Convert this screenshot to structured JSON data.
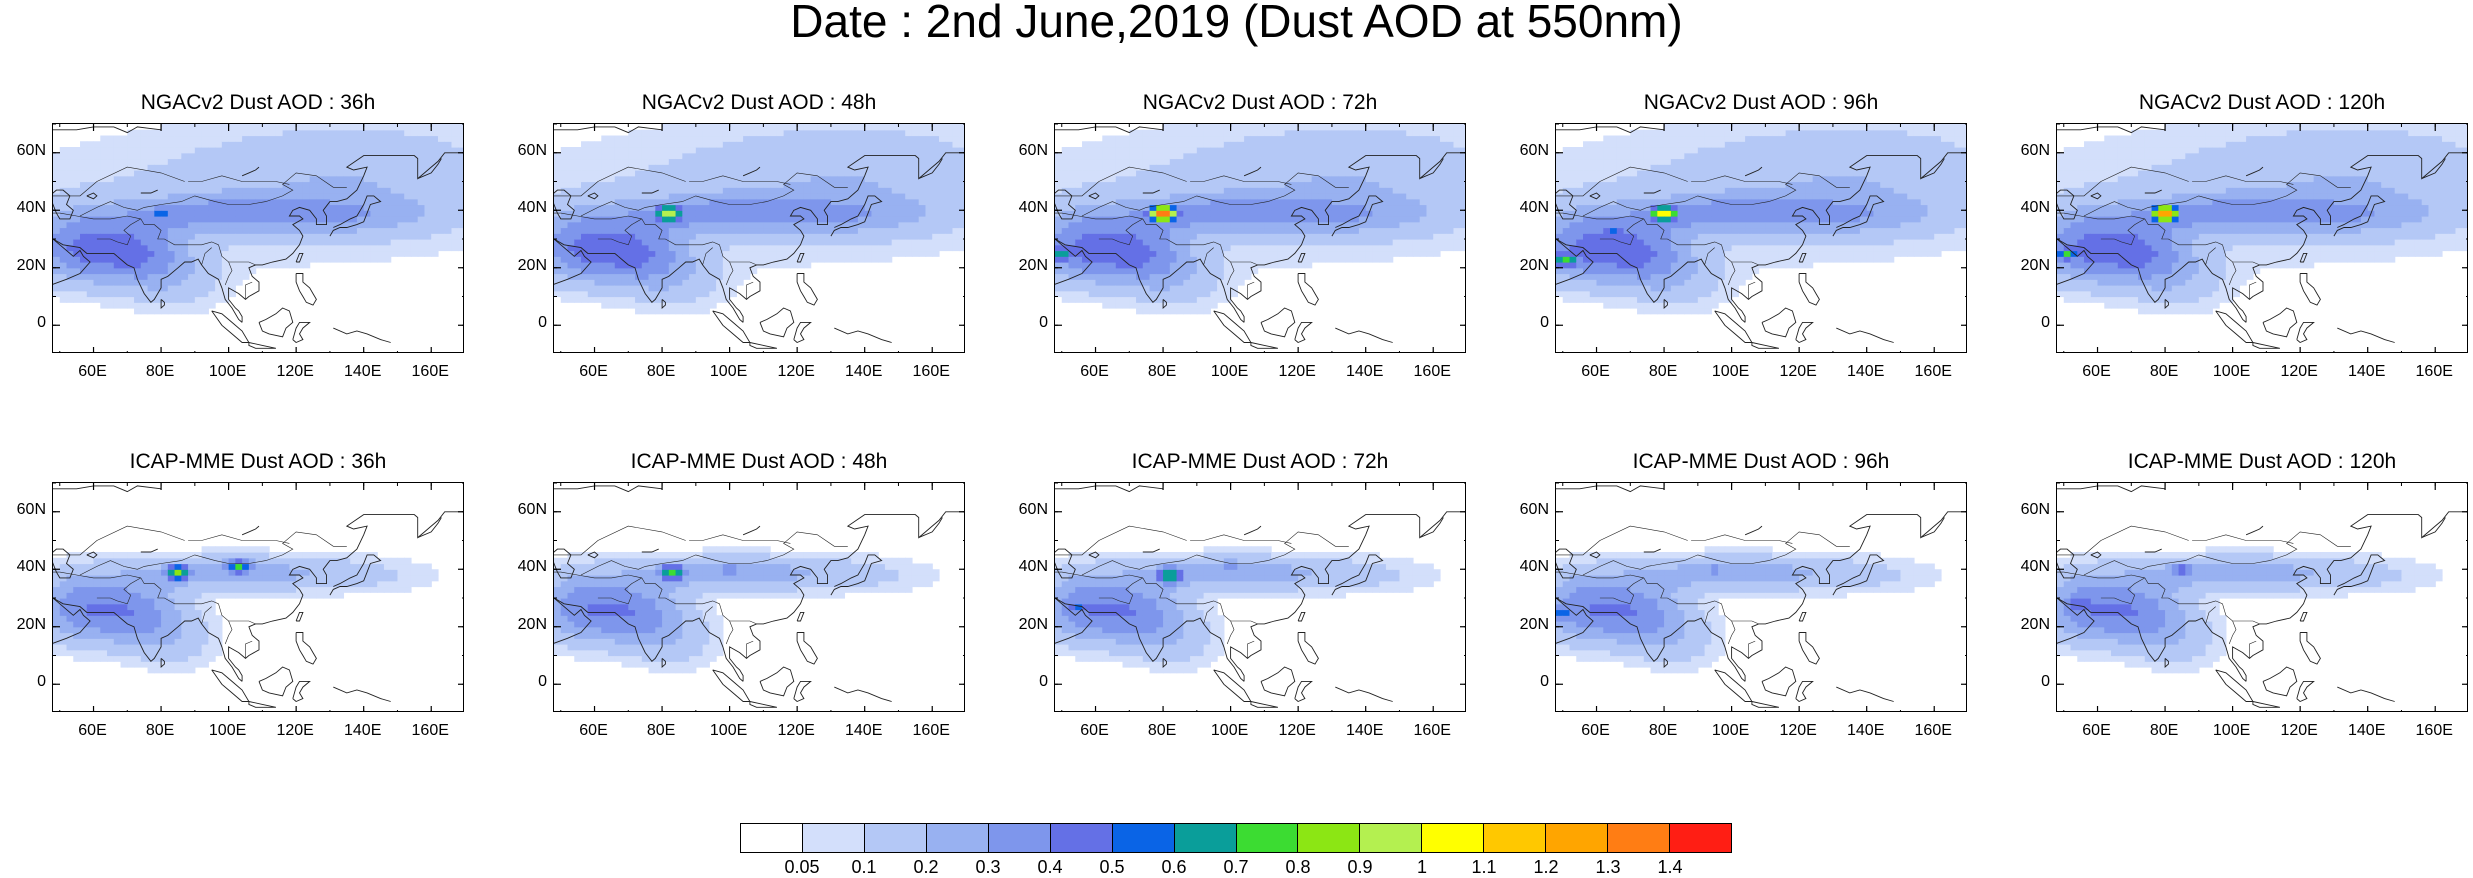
{
  "title": "Date : 2nd June,2019 (Dust AOD at 550nm)",
  "panels": [
    {
      "title": "NGACv2 Dust AOD : 36h",
      "row": 0,
      "col": 0,
      "hotspots": [
        {
          "lon": 80,
          "lat": 39,
          "aod": 0.6
        },
        {
          "lon": 75,
          "lat": 26,
          "aod": 0.45
        },
        {
          "lon": 100,
          "lat": 38,
          "aod": 0.4
        }
      ]
    },
    {
      "title": "NGACv2 Dust AOD : 48h",
      "row": 0,
      "col": 1,
      "hotspots": [
        {
          "lon": 82,
          "lat": 39,
          "aod": 1.05
        },
        {
          "lon": 60,
          "lat": 28,
          "aod": 0.5
        },
        {
          "lon": 75,
          "lat": 26,
          "aod": 0.45
        }
      ]
    },
    {
      "title": "NGACv2 Dust AOD : 72h",
      "row": 0,
      "col": 2,
      "hotspots": [
        {
          "lon": 80,
          "lat": 39,
          "aod": 1.4
        },
        {
          "lon": 50,
          "lat": 25,
          "aod": 0.7
        },
        {
          "lon": 70,
          "lat": 30,
          "aod": 0.5
        }
      ]
    },
    {
      "title": "NGACv2 Dust AOD : 96h",
      "row": 0,
      "col": 3,
      "hotspots": [
        {
          "lon": 80,
          "lat": 39,
          "aod": 1.1
        },
        {
          "lon": 51,
          "lat": 23,
          "aod": 0.75
        },
        {
          "lon": 65,
          "lat": 33,
          "aod": 0.5
        }
      ]
    },
    {
      "title": "NGACv2 Dust AOD : 120h",
      "row": 0,
      "col": 4,
      "hotspots": [
        {
          "lon": 80,
          "lat": 39,
          "aod": 1.35
        },
        {
          "lon": 51,
          "lat": 25,
          "aod": 0.7
        },
        {
          "lon": 68,
          "lat": 29,
          "aod": 0.5
        }
      ]
    },
    {
      "title": "ICAP-MME Dust AOD : 36h",
      "row": 1,
      "col": 0,
      "hotspots": [
        {
          "lon": 85,
          "lat": 39,
          "aod": 0.8
        },
        {
          "lon": 103,
          "lat": 41,
          "aod": 0.7
        },
        {
          "lon": 60,
          "lat": 27,
          "aod": 0.4
        }
      ]
    },
    {
      "title": "ICAP-MME Dust AOD : 48h",
      "row": 1,
      "col": 1,
      "hotspots": [
        {
          "lon": 83,
          "lat": 39,
          "aod": 0.75
        },
        {
          "lon": 60,
          "lat": 27,
          "aod": 0.45
        },
        {
          "lon": 100,
          "lat": 40,
          "aod": 0.4
        }
      ]
    },
    {
      "title": "ICAP-MME Dust AOD : 72h",
      "row": 1,
      "col": 2,
      "hotspots": [
        {
          "lon": 82,
          "lat": 38,
          "aod": 0.8
        },
        {
          "lon": 55,
          "lat": 27,
          "aod": 0.5
        },
        {
          "lon": 100,
          "lat": 41,
          "aod": 0.4
        }
      ]
    },
    {
      "title": "ICAP-MME Dust AOD : 96h",
      "row": 1,
      "col": 3,
      "hotspots": [
        {
          "lon": 50,
          "lat": 25,
          "aod": 0.6
        },
        {
          "lon": 70,
          "lat": 30,
          "aod": 0.45
        },
        {
          "lon": 95,
          "lat": 40,
          "aod": 0.4
        }
      ]
    },
    {
      "title": "ICAP-MME Dust AOD : 120h",
      "row": 1,
      "col": 4,
      "hotspots": [
        {
          "lon": 55,
          "lat": 28,
          "aod": 0.55
        },
        {
          "lon": 85,
          "lat": 40,
          "aod": 0.5
        },
        {
          "lon": 72,
          "lat": 28,
          "aod": 0.45
        }
      ]
    }
  ],
  "axes": {
    "y_ticks": [
      "60N",
      "40N",
      "20N",
      "0"
    ],
    "y_values": [
      60,
      40,
      20,
      0
    ],
    "x_ticks": [
      "60E",
      "80E",
      "100E",
      "120E",
      "140E",
      "160E"
    ],
    "x_values": [
      60,
      80,
      100,
      120,
      140,
      160
    ],
    "lon_range": [
      48,
      170
    ],
    "lat_range": [
      -10,
      70
    ]
  },
  "colorbar": {
    "colors": [
      "#ffffff",
      "#d3dffb",
      "#b4c8f6",
      "#98b1f1",
      "#7e96ec",
      "#6470e6",
      "#0a64e6",
      "#0a9e9a",
      "#3cdc32",
      "#8ce614",
      "#b4f050",
      "#ffff00",
      "#ffc800",
      "#ffa500",
      "#ff7d14",
      "#ff1e14"
    ],
    "labels": [
      "0.05",
      "0.1",
      "0.2",
      "0.3",
      "0.4",
      "0.5",
      "0.6",
      "0.7",
      "0.8",
      "0.9",
      "1",
      "1.1",
      "1.2",
      "1.3",
      "1.4"
    ],
    "levels": [
      0.05,
      0.1,
      0.2,
      0.3,
      0.4,
      0.5,
      0.6,
      0.7,
      0.8,
      0.9,
      1,
      1.1,
      1.2,
      1.3,
      1.4
    ]
  }
}
